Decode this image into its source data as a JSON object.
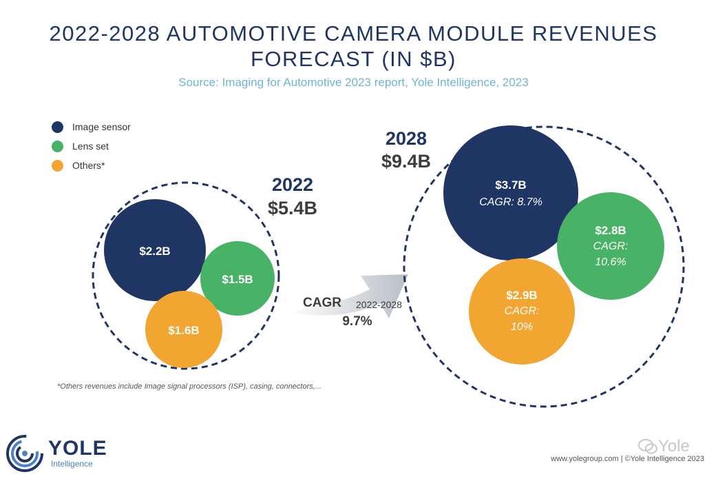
{
  "header": {
    "title_line1": "2022-2028 AUTOMOTIVE CAMERA MODULE REVENUES",
    "title_line2": "FORECAST (IN $B)",
    "source": "Source: Imaging for Automotive 2023 report, Yole Intelligence, 2023"
  },
  "legend": [
    {
      "label": "Image sensor",
      "color": "#1f3563"
    },
    {
      "label": "Lens set",
      "color": "#48b366"
    },
    {
      "label": "Others*",
      "color": "#f2a531"
    }
  ],
  "chart_data": {
    "type": "bubble",
    "title": "2022-2028 AUTOMOTIVE CAMERA MODULE REVENUES FORECAST (IN $B)",
    "unit": "$B",
    "categories": [
      "Image sensor",
      "Lens set",
      "Others*"
    ],
    "years": [
      {
        "year": "2022",
        "total_value": 5.4,
        "total_label": "$5.4B",
        "segments": [
          {
            "category": "Image sensor",
            "value": 2.2,
            "label": "$2.2B",
            "cagr": ""
          },
          {
            "category": "Lens set",
            "value": 1.5,
            "label": "$1.5B",
            "cagr": ""
          },
          {
            "category": "Others*",
            "value": 1.6,
            "label": "$1.6B",
            "cagr": ""
          }
        ]
      },
      {
        "year": "2028",
        "total_value": 9.4,
        "total_label": "$9.4B",
        "segments": [
          {
            "category": "Image sensor",
            "value": 3.7,
            "label": "$3.7B",
            "cagr": "CAGR: 8.7%"
          },
          {
            "category": "Lens set",
            "value": 2.8,
            "label": "$2.8B",
            "cagr_lines": [
              "CAGR:",
              "10.6%"
            ]
          },
          {
            "category": "Others*",
            "value": 2.9,
            "label": "$2.9B",
            "cagr_lines": [
              "CAGR:",
              "10%"
            ]
          }
        ]
      }
    ],
    "overall_cagr": {
      "label": "CAGR",
      "period": "2022-2028",
      "value": "9.7%"
    }
  },
  "footnote": "*Others revenues include Image signal processors (ISP), casing, connectors,...",
  "logo": {
    "name": "YOLE",
    "sub": "Intelligence"
  },
  "watermark": "Yole",
  "credit": "www.yolegroup.com | ©Yole Intelligence 2023"
}
